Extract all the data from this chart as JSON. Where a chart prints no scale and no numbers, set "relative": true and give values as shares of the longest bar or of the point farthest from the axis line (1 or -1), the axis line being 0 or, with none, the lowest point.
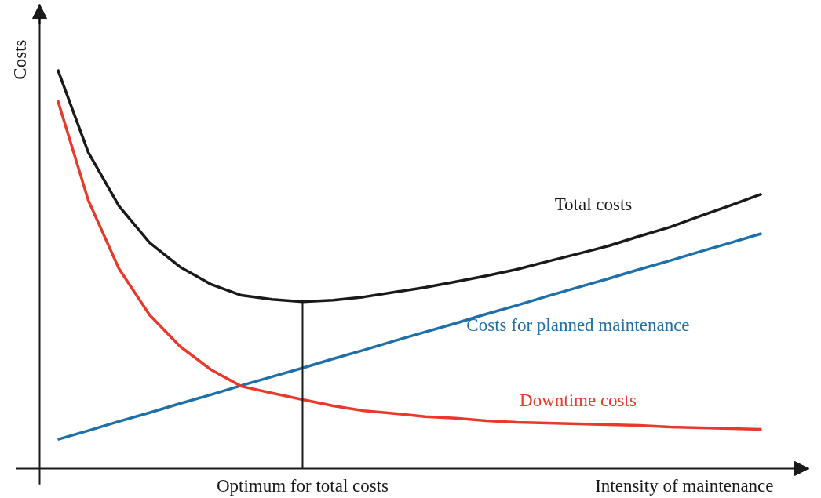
{
  "chart_data": {
    "type": "line",
    "relative": true,
    "xlabel": "Intensity of maintenance",
    "ylabel": "Costs",
    "legend": false,
    "marker": "none",
    "line_style": "solid",
    "categories": [
      null,
      null,
      null,
      null,
      null,
      null,
      null,
      null,
      null,
      null,
      null,
      null,
      null,
      null,
      null,
      null,
      null,
      null,
      null,
      null,
      null,
      null,
      null,
      null
    ],
    "series": [
      {
        "name": "Total costs",
        "color": "#1a1a1a",
        "values": [
          1.0,
          0.792,
          0.658,
          0.566,
          0.505,
          0.462,
          0.434,
          0.424,
          0.418,
          0.422,
          0.43,
          0.442,
          0.454,
          0.468,
          0.483,
          0.499,
          0.519,
          0.538,
          0.558,
          0.582,
          0.605,
          0.633,
          0.66,
          0.688
        ]
      },
      {
        "name": "Costs for planned maintenance",
        "color": "#1f6fa8",
        "values": [
          0.073,
          0.095,
          0.118,
          0.14,
          0.163,
          0.185,
          0.208,
          0.23,
          0.252,
          0.275,
          0.297,
          0.32,
          0.342,
          0.364,
          0.387,
          0.409,
          0.432,
          0.454,
          0.476,
          0.499,
          0.521,
          0.544,
          0.566,
          0.589
        ]
      },
      {
        "name": "Downtime costs",
        "color": "#e8392a",
        "values": [
          0.923,
          0.672,
          0.501,
          0.385,
          0.306,
          0.248,
          0.206,
          0.189,
          0.173,
          0.157,
          0.145,
          0.138,
          0.13,
          0.126,
          0.12,
          0.116,
          0.114,
          0.112,
          0.11,
          0.108,
          0.104,
          0.102,
          0.1,
          0.098
        ]
      }
    ],
    "annotations": [
      "Optimum for total costs"
    ]
  }
}
